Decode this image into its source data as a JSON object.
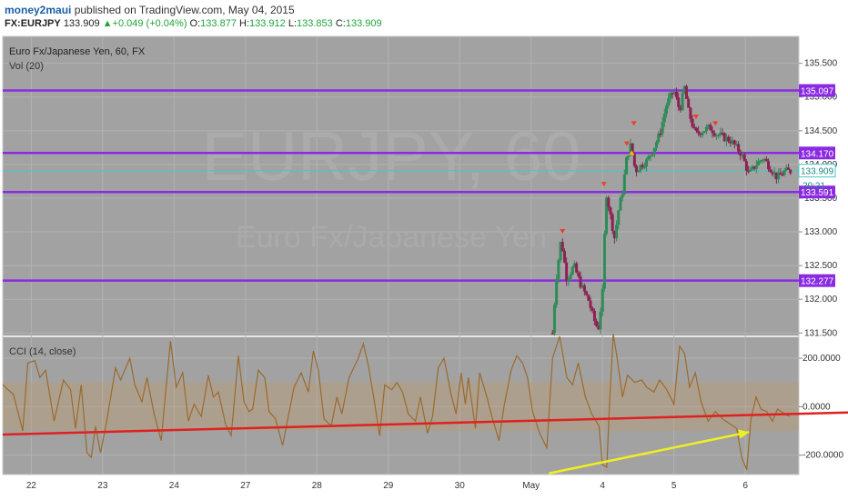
{
  "header": {
    "author": "money2maui",
    "published": "published on TradingView.com, May 04, 2015",
    "symbol": "FX:EURJPY",
    "last": "133.909",
    "change": "+0.049 (+0.04%)",
    "o_label": "O:",
    "o": "133.877",
    "h_label": "H:",
    "h": "133.912",
    "l_label": "L:",
    "l": "133.853",
    "c_label": "C:",
    "c": "133.909"
  },
  "chart_data": [
    {
      "type": "candlestick",
      "title": "Euro Fx/Japanese Yen, 60, FX",
      "subtitle": "Vol (20)",
      "watermark_symbol": "EURJPY, 60",
      "watermark_name": "Euro Fx/Japanese Yen",
      "ylim": [
        131.45,
        135.9
      ],
      "yticks": [
        "131.500",
        "132.000",
        "132.500",
        "133.000",
        "133.500",
        "134.000",
        "134.500",
        "135.000",
        "135.500"
      ],
      "levels": [
        {
          "value": 135.097,
          "label": "135.097"
        },
        {
          "value": 134.17,
          "label": "134.170"
        },
        {
          "value": 133.591,
          "label": "133.591"
        },
        {
          "value": 132.277,
          "label": "132.277"
        }
      ],
      "last_price": {
        "value": 133.909,
        "label": "133.909",
        "countdown": "20:21"
      },
      "colors": {
        "level": "#8a2be2",
        "up": "#2e8b57",
        "down": "#8b2252",
        "price_line": "#46c8c8"
      },
      "path": [
        [
          29.3,
          131.5
        ],
        [
          29.35,
          132.3
        ],
        [
          29.42,
          132.9
        ],
        [
          29.5,
          132.3
        ],
        [
          29.6,
          132.5
        ],
        [
          29.7,
          132.2
        ],
        [
          29.8,
          132.0
        ],
        [
          29.88,
          131.7
        ],
        [
          29.94,
          131.55
        ],
        [
          30.0,
          132.1
        ],
        [
          30.05,
          133.6
        ],
        [
          30.1,
          133.3
        ],
        [
          30.17,
          132.9
        ],
        [
          30.22,
          133.3
        ],
        [
          30.28,
          133.6
        ],
        [
          30.34,
          134.1
        ],
        [
          30.4,
          134.3
        ],
        [
          30.46,
          133.9
        ],
        [
          30.55,
          134.0
        ],
        [
          30.62,
          134.05
        ],
        [
          30.7,
          134.2
        ],
        [
          30.8,
          134.45
        ],
        [
          30.9,
          134.9
        ],
        [
          31.0,
          135.1
        ],
        [
          31.08,
          134.8
        ],
        [
          31.15,
          135.15
        ],
        [
          31.2,
          134.8
        ],
        [
          31.3,
          134.45
        ],
        [
          31.4,
          134.5
        ],
        [
          31.5,
          134.55
        ],
        [
          31.6,
          134.45
        ],
        [
          31.7,
          134.4
        ],
        [
          31.8,
          134.35
        ],
        [
          31.95,
          134.15
        ],
        [
          32.05,
          133.85
        ],
        [
          32.15,
          134.0
        ],
        [
          32.25,
          134.1
        ],
        [
          32.35,
          133.95
        ],
        [
          32.45,
          133.8
        ],
        [
          32.55,
          133.9
        ],
        [
          32.65,
          133.9
        ]
      ],
      "signals_down": [
        [
          29.44,
          133.0
        ],
        [
          30.02,
          133.7
        ],
        [
          30.34,
          134.3
        ],
        [
          30.44,
          134.6
        ],
        [
          31.31,
          134.7
        ],
        [
          31.58,
          134.6
        ]
      ],
      "signals_up": [
        [
          30.41,
          134.18
        ]
      ]
    },
    {
      "type": "line",
      "title": "CCI (14, close)",
      "ylim": [
        -280,
        290
      ],
      "yticks": [
        {
          "value": 200,
          "label": "200.0000"
        },
        {
          "value": 0,
          "label": "0.0000"
        },
        {
          "value": -200,
          "label": "-200.0000"
        }
      ],
      "band": [
        -100,
        100
      ],
      "series": [
        {
          "values": [
            [
              21.6,
              90
            ],
            [
              21.75,
              50
            ],
            [
              21.88,
              -100
            ],
            [
              21.95,
              180
            ],
            [
              22.05,
              190
            ],
            [
              22.12,
              120
            ],
            [
              22.2,
              150
            ],
            [
              22.32,
              -60
            ],
            [
              22.45,
              110
            ],
            [
              22.55,
              70
            ],
            [
              22.62,
              -90
            ],
            [
              22.7,
              90
            ],
            [
              22.78,
              -190
            ],
            [
              22.84,
              -210
            ],
            [
              22.9,
              -80
            ],
            [
              22.97,
              -190
            ],
            [
              23.05,
              -70
            ],
            [
              23.18,
              160
            ],
            [
              23.25,
              110
            ],
            [
              23.38,
              200
            ],
            [
              23.45,
              90
            ],
            [
              23.55,
              20
            ],
            [
              23.62,
              120
            ],
            [
              23.72,
              -30
            ],
            [
              23.82,
              -140
            ],
            [
              23.9,
              120
            ],
            [
              23.95,
              270
            ],
            [
              24.03,
              80
            ],
            [
              24.12,
              140
            ],
            [
              24.2,
              -60
            ],
            [
              24.28,
              10
            ],
            [
              24.38,
              -40
            ],
            [
              24.48,
              130
            ],
            [
              24.55,
              40
            ],
            [
              24.62,
              60
            ],
            [
              24.72,
              -70
            ],
            [
              24.8,
              -120
            ],
            [
              24.9,
              210
            ],
            [
              24.98,
              20
            ],
            [
              25.05,
              -20
            ],
            [
              25.1,
              -10
            ],
            [
              25.18,
              150
            ],
            [
              25.27,
              120
            ],
            [
              25.33,
              -20
            ],
            [
              25.42,
              -50
            ],
            [
              25.52,
              -160
            ],
            [
              25.6,
              -40
            ],
            [
              25.68,
              80
            ],
            [
              25.78,
              140
            ],
            [
              25.88,
              60
            ],
            [
              25.95,
              230
            ],
            [
              26.02,
              150
            ],
            [
              26.1,
              -50
            ],
            [
              26.2,
              -80
            ],
            [
              26.28,
              40
            ],
            [
              26.35,
              -30
            ],
            [
              26.45,
              120
            ],
            [
              26.58,
              200
            ],
            [
              26.65,
              260
            ],
            [
              26.72,
              170
            ],
            [
              26.8,
              30
            ],
            [
              26.88,
              -120
            ],
            [
              26.95,
              90
            ],
            [
              27.05,
              70
            ],
            [
              27.12,
              100
            ],
            [
              27.2,
              60
            ],
            [
              27.28,
              -30
            ],
            [
              27.38,
              -60
            ],
            [
              27.45,
              40
            ],
            [
              27.55,
              -110
            ],
            [
              27.62,
              -40
            ],
            [
              27.7,
              160
            ],
            [
              27.78,
              200
            ],
            [
              27.88,
              50
            ],
            [
              27.95,
              -30
            ],
            [
              28.02,
              140
            ],
            [
              28.08,
              10
            ],
            [
              28.12,
              120
            ],
            [
              28.22,
              -90
            ],
            [
              28.28,
              140
            ],
            [
              28.38,
              40
            ],
            [
              28.45,
              -40
            ],
            [
              28.55,
              -140
            ],
            [
              28.62,
              0
            ],
            [
              28.72,
              150
            ],
            [
              28.8,
              210
            ],
            [
              28.88,
              180
            ],
            [
              28.95,
              120
            ],
            [
              29.02,
              -20
            ],
            [
              29.12,
              -110
            ],
            [
              29.22,
              -170
            ],
            [
              29.3,
              200
            ],
            [
              29.4,
              290
            ],
            [
              29.5,
              120
            ],
            [
              29.58,
              90
            ],
            [
              29.66,
              180
            ],
            [
              29.76,
              40
            ],
            [
              29.85,
              -30
            ],
            [
              29.95,
              -80
            ],
            [
              30.0,
              -240
            ],
            [
              30.06,
              -250
            ],
            [
              30.1,
              20
            ],
            [
              30.15,
              300
            ],
            [
              30.2,
              210
            ],
            [
              30.28,
              40
            ],
            [
              30.35,
              130
            ],
            [
              30.45,
              100
            ],
            [
              30.55,
              110
            ],
            [
              30.62,
              80
            ],
            [
              30.72,
              60
            ],
            [
              30.8,
              110
            ],
            [
              30.9,
              70
            ],
            [
              31.0,
              10
            ],
            [
              31.08,
              250
            ],
            [
              31.15,
              220
            ],
            [
              31.22,
              80
            ],
            [
              31.3,
              140
            ],
            [
              31.38,
              20
            ],
            [
              31.48,
              -60
            ],
            [
              31.58,
              -20
            ],
            [
              31.68,
              -50
            ],
            [
              31.78,
              -70
            ],
            [
              31.88,
              -90
            ],
            [
              31.95,
              -210
            ],
            [
              32.02,
              -260
            ],
            [
              32.08,
              -50
            ],
            [
              32.15,
              40
            ],
            [
              32.22,
              -10
            ],
            [
              32.3,
              -20
            ],
            [
              32.38,
              -60
            ],
            [
              32.45,
              -10
            ],
            [
              32.55,
              -30
            ],
            [
              32.62,
              -40
            ]
          ]
        }
      ],
      "trendline": {
        "color": "#e02020",
        "from": [
          21.6,
          -115
        ],
        "to": [
          34.6,
          -15
        ]
      },
      "arrow": {
        "color": "#f0f020",
        "from": [
          29.25,
          -275
        ],
        "to": [
          32.05,
          -105
        ]
      }
    }
  ],
  "x_axis": {
    "ticks": [
      {
        "x": 22,
        "label": "22"
      },
      {
        "x": 23,
        "label": "23"
      },
      {
        "x": 24,
        "label": "24"
      },
      {
        "x": 25,
        "label": "27"
      },
      {
        "x": 26,
        "label": "28"
      },
      {
        "x": 27,
        "label": "29"
      },
      {
        "x": 28,
        "label": "30"
      },
      {
        "x": 29,
        "label": "May"
      },
      {
        "x": 30,
        "label": "4"
      },
      {
        "x": 31,
        "label": "5"
      },
      {
        "x": 32,
        "label": "6"
      }
    ]
  }
}
